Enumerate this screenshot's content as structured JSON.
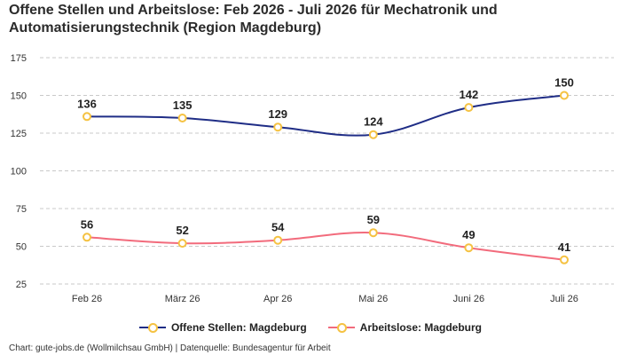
{
  "title_line1": "Offene Stellen und Arbeitslose: Feb 2026 - Juli 2026 für Mechatronik und",
  "title_line2": "Automatisierungstechnik (Region Magdeburg)",
  "footer": "Chart: gute-jobs.de (Wollmilchsau GmbH) | Datenquelle: Bundesagentur für Arbeit",
  "chart_data": {
    "type": "line",
    "categories": [
      "Feb 26",
      "März 26",
      "Apr 26",
      "Mai 26",
      "Juni 26",
      "Juli 26"
    ],
    "series": [
      {
        "name": "Offene Stellen: Magdeburg",
        "values": [
          136,
          135,
          129,
          124,
          142,
          150
        ],
        "color": "#1f2d86"
      },
      {
        "name": "Arbeitslose: Magdeburg",
        "values": [
          56,
          52,
          54,
          59,
          49,
          41
        ],
        "color": "#f26b7c"
      }
    ],
    "yticks": [
      25,
      50,
      75,
      100,
      125,
      150,
      175
    ],
    "ylim": [
      25,
      175
    ],
    "grid": true,
    "marker_color": "#f5c242",
    "legend_position": "bottom"
  }
}
